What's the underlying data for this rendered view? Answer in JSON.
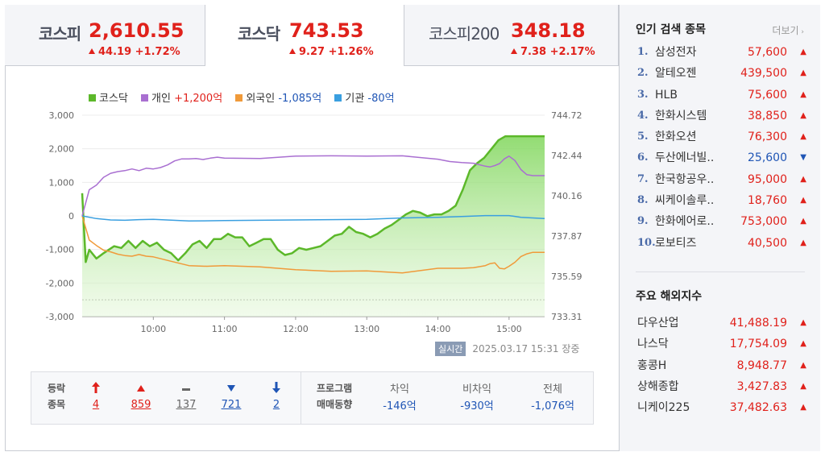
{
  "tabs": [
    {
      "name": "코스피",
      "value": "2,610.55",
      "change": "44.19 +1.72%"
    },
    {
      "name": "코스닥",
      "value": "743.53",
      "change": "9.27 +1.26%"
    },
    {
      "name": "코스피200",
      "value": "348.18",
      "change": "7.38 +2.17%"
    }
  ],
  "legend": {
    "kosdaq": "코스닥",
    "individual_label": "개인",
    "individual_value": "+1,200억",
    "foreign_label": "외국인",
    "foreign_value": "-1,085억",
    "institution_label": "기관",
    "institution_value": "-80억"
  },
  "timestamp": {
    "badge": "실시간",
    "text": "2025.03.17 15:31",
    "status": "장중"
  },
  "breadth": {
    "label_line1": "등락",
    "label_line2": "종목",
    "items": [
      {
        "icon": "upper-limit-icon",
        "value": "4"
      },
      {
        "icon": "rise-icon",
        "value": "859"
      },
      {
        "icon": "unchanged-icon",
        "value": "137"
      },
      {
        "icon": "fall-icon",
        "value": "721"
      },
      {
        "icon": "lower-limit-icon",
        "value": "2"
      }
    ]
  },
  "program": {
    "label_line1": "프로그램",
    "label_line2": "매매동향",
    "items": [
      {
        "label": "차익",
        "value": "-146억"
      },
      {
        "label": "비차익",
        "value": "-930억"
      },
      {
        "label": "전체",
        "value": "-1,076억"
      }
    ]
  },
  "popular": {
    "title": "인기 검색 종목",
    "more": "더보기",
    "items": [
      {
        "rank": "1.",
        "name": "삼성전자",
        "price": "57,600",
        "dir": "up"
      },
      {
        "rank": "2.",
        "name": "알테오젠",
        "price": "439,500",
        "dir": "up"
      },
      {
        "rank": "3.",
        "name": "HLB",
        "price": "75,600",
        "dir": "up"
      },
      {
        "rank": "4.",
        "name": "한화시스템",
        "price": "38,850",
        "dir": "up"
      },
      {
        "rank": "5.",
        "name": "한화오션",
        "price": "76,300",
        "dir": "up"
      },
      {
        "rank": "6.",
        "name": "두산에너빌..",
        "price": "25,600",
        "dir": "down"
      },
      {
        "rank": "7.",
        "name": "한국항공우..",
        "price": "95,000",
        "dir": "up"
      },
      {
        "rank": "8.",
        "name": "씨케이솔루..",
        "price": "18,760",
        "dir": "up"
      },
      {
        "rank": "9.",
        "name": "한화에어로..",
        "price": "753,000",
        "dir": "up"
      },
      {
        "rank": "10.",
        "name": "로보티즈",
        "price": "40,500",
        "dir": "up"
      }
    ]
  },
  "world": {
    "title": "주요 해외지수",
    "items": [
      {
        "name": "다우산업",
        "value": "41,488.19",
        "dir": "up"
      },
      {
        "name": "나스닥",
        "value": "17,754.09",
        "dir": "up"
      },
      {
        "name": "홍콩H",
        "value": "8,948.77",
        "dir": "up"
      },
      {
        "name": "상해종합",
        "value": "3,427.83",
        "dir": "up"
      },
      {
        "name": "니케이225",
        "value": "37,482.63",
        "dir": "up"
      }
    ]
  },
  "colors": {
    "up": "#e0211b",
    "down": "#1f55b5",
    "kosdaq": "#5cb82a",
    "individual": "#a96fd1",
    "foreign": "#f09a3a",
    "institution": "#3a9fe0"
  },
  "chart_data": {
    "type": "line",
    "x_ticks": [
      "10:00",
      "11:00",
      "12:00",
      "13:00",
      "14:00",
      "15:00"
    ],
    "y_left_ticks": [
      "3,000",
      "2,000",
      "1,000",
      "0",
      "-1,000",
      "-2,000",
      "-3,000"
    ],
    "y_right_ticks": [
      "744.72",
      "742.44",
      "740.16",
      "737.87",
      "735.59",
      "733.31"
    ],
    "ylim_left": [
      -3000,
      3000
    ],
    "ylim_right": [
      733.31,
      744.72
    ],
    "x_range": [
      "09:00",
      "15:30"
    ],
    "reference_right": 734.26,
    "series": [
      {
        "name": "코스닥",
        "axis": "right",
        "color": "#5cb82a",
        "x": [
          "09:00",
          "09:03",
          "09:06",
          "09:12",
          "09:18",
          "09:27",
          "09:33",
          "09:39",
          "09:45",
          "09:51",
          "09:57",
          "10:03",
          "10:09",
          "10:15",
          "10:21",
          "10:27",
          "10:33",
          "10:39",
          "10:45",
          "10:51",
          "10:57",
          "11:03",
          "11:09",
          "11:15",
          "11:21",
          "11:27",
          "11:33",
          "11:39",
          "11:45",
          "11:51",
          "11:57",
          "12:03",
          "12:09",
          "12:15",
          "12:21",
          "12:27",
          "12:33",
          "12:39",
          "12:45",
          "12:51",
          "12:57",
          "13:03",
          "13:09",
          "13:15",
          "13:21",
          "13:27",
          "13:33",
          "13:39",
          "13:45",
          "13:51",
          "13:57",
          "14:03",
          "14:09",
          "14:15",
          "14:21",
          "14:27",
          "14:33",
          "14:39",
          "14:45",
          "14:51",
          "14:57",
          "15:03",
          "15:09",
          "15:15",
          "15:21",
          "15:27",
          "15:30"
        ],
        "values": [
          740.3,
          736.4,
          737.1,
          736.6,
          736.9,
          737.3,
          737.2,
          737.6,
          737.2,
          737.6,
          737.3,
          737.5,
          737.1,
          736.9,
          736.5,
          736.9,
          737.4,
          737.6,
          737.2,
          737.7,
          737.7,
          738.0,
          737.8,
          737.8,
          737.3,
          737.5,
          737.7,
          737.7,
          737.1,
          736.8,
          736.9,
          737.2,
          737.1,
          737.2,
          737.3,
          737.6,
          737.9,
          738.0,
          738.4,
          738.1,
          738.0,
          737.8,
          738.0,
          738.3,
          738.5,
          738.8,
          739.1,
          739.3,
          739.2,
          739.0,
          739.1,
          739.1,
          739.3,
          739.6,
          740.5,
          741.6,
          742.0,
          742.3,
          742.8,
          743.3,
          743.53,
          743.53,
          743.53,
          743.53,
          743.53,
          743.53,
          743.53
        ]
      },
      {
        "name": "개인",
        "axis": "left",
        "color": "#a96fd1",
        "x": [
          "09:00",
          "09:06",
          "09:12",
          "09:18",
          "09:24",
          "09:30",
          "09:36",
          "09:42",
          "09:48",
          "09:54",
          "10:00",
          "10:06",
          "10:12",
          "10:18",
          "10:24",
          "10:30",
          "10:36",
          "10:42",
          "10:48",
          "10:54",
          "11:00",
          "11:30",
          "12:00",
          "12:30",
          "13:00",
          "13:30",
          "14:00",
          "14:10",
          "14:20",
          "14:30",
          "14:40",
          "14:44",
          "14:48",
          "14:52",
          "14:56",
          "15:00",
          "15:05",
          "15:10",
          "15:15",
          "15:20",
          "15:30"
        ],
        "values": [
          0,
          780,
          920,
          1150,
          1270,
          1320,
          1350,
          1400,
          1350,
          1420,
          1400,
          1440,
          1520,
          1640,
          1700,
          1700,
          1710,
          1680,
          1720,
          1750,
          1720,
          1710,
          1780,
          1790,
          1780,
          1790,
          1690,
          1620,
          1590,
          1570,
          1480,
          1460,
          1500,
          1560,
          1700,
          1780,
          1650,
          1380,
          1230,
          1200,
          1200
        ]
      },
      {
        "name": "외국인",
        "axis": "left",
        "color": "#f09a3a",
        "x": [
          "09:00",
          "09:06",
          "09:12",
          "09:18",
          "09:24",
          "09:30",
          "09:36",
          "09:42",
          "09:48",
          "09:54",
          "10:00",
          "10:15",
          "10:30",
          "10:45",
          "11:00",
          "11:30",
          "12:00",
          "12:30",
          "13:00",
          "13:30",
          "14:00",
          "14:20",
          "14:30",
          "14:40",
          "14:44",
          "14:48",
          "14:52",
          "14:56",
          "15:00",
          "15:05",
          "15:10",
          "15:15",
          "15:20",
          "15:30"
        ],
        "values": [
          0,
          -720,
          -880,
          -1020,
          -1070,
          -1140,
          -1180,
          -1200,
          -1150,
          -1200,
          -1220,
          -1350,
          -1480,
          -1500,
          -1480,
          -1520,
          -1600,
          -1650,
          -1640,
          -1700,
          -1560,
          -1560,
          -1540,
          -1480,
          -1420,
          -1400,
          -1560,
          -1580,
          -1500,
          -1380,
          -1210,
          -1130,
          -1085,
          -1085
        ]
      },
      {
        "name": "기관",
        "axis": "left",
        "color": "#3a9fe0",
        "x": [
          "09:00",
          "09:12",
          "09:24",
          "09:36",
          "09:48",
          "10:00",
          "10:30",
          "11:00",
          "11:30",
          "12:00",
          "12:30",
          "13:00",
          "13:30",
          "14:00",
          "14:20",
          "14:40",
          "15:00",
          "15:10",
          "15:20",
          "15:30"
        ],
        "values": [
          0,
          -80,
          -120,
          -130,
          -110,
          -100,
          -150,
          -140,
          -130,
          -120,
          -110,
          -100,
          -60,
          -40,
          -20,
          10,
          10,
          -40,
          -60,
          -80
        ]
      }
    ]
  }
}
